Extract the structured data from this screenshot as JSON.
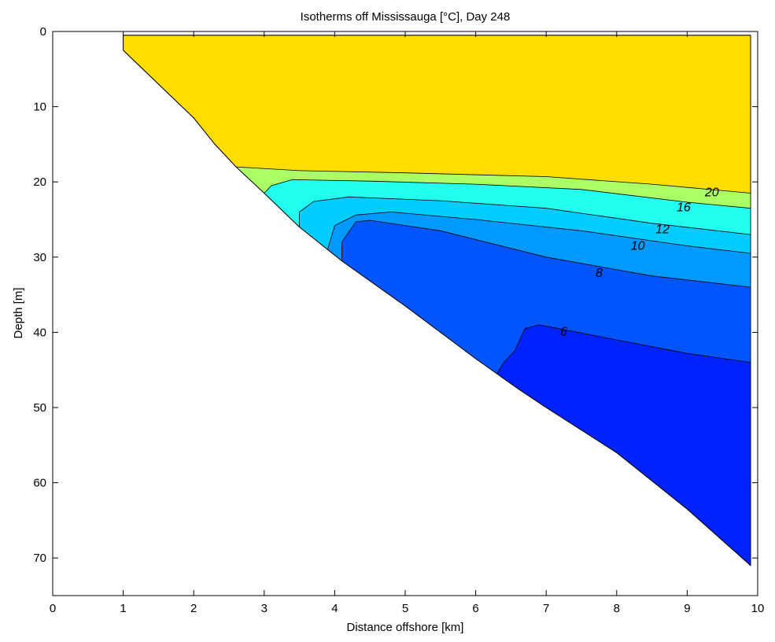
{
  "chart_data": {
    "type": "contour",
    "title": "Isotherms off Mississauga [°C], Day 248",
    "xlabel": "Distance offshore [km]",
    "ylabel": "Depth [m]",
    "xlim": [
      0,
      10
    ],
    "ylim": [
      0,
      75
    ],
    "y_reversed": true,
    "x_ticks": [
      "0",
      "1",
      "2",
      "3",
      "4",
      "5",
      "6",
      "7",
      "8",
      "9",
      "10"
    ],
    "y_ticks": [
      "0",
      "10",
      "20",
      "30",
      "40",
      "50",
      "60",
      "70"
    ],
    "grid": false,
    "bottom_profile": [
      {
        "x": 1.0,
        "y": 2.5
      },
      {
        "x": 1.5,
        "y": 7.0
      },
      {
        "x": 2.0,
        "y": 11.5
      },
      {
        "x": 2.3,
        "y": 15.0
      },
      {
        "x": 2.6,
        "y": 18.0
      },
      {
        "x": 3.0,
        "y": 21.5
      },
      {
        "x": 3.5,
        "y": 26.0
      },
      {
        "x": 4.1,
        "y": 30.5
      },
      {
        "x": 5.0,
        "y": 36.5
      },
      {
        "x": 6.0,
        "y": 43.5
      },
      {
        "x": 6.6,
        "y": 47.5
      },
      {
        "x": 7.0,
        "y": 50.0
      },
      {
        "x": 8.0,
        "y": 56.0
      },
      {
        "x": 9.0,
        "y": 63.5
      },
      {
        "x": 9.9,
        "y": 71.0
      }
    ],
    "isotherms": [
      {
        "level": 20,
        "label": "20",
        "label_at": {
          "x": 9.35,
          "y": 21.3
        },
        "points": [
          {
            "x": 2.6,
            "y": 18.0
          },
          {
            "x": 3.5,
            "y": 18.5
          },
          {
            "x": 5.0,
            "y": 18.8
          },
          {
            "x": 7.0,
            "y": 19.3
          },
          {
            "x": 8.5,
            "y": 20.3
          },
          {
            "x": 9.9,
            "y": 21.5
          }
        ]
      },
      {
        "level": 16,
        "label": "16",
        "label_at": {
          "x": 8.95,
          "y": 23.3
        },
        "points": [
          {
            "x": 3.0,
            "y": 21.5
          },
          {
            "x": 3.1,
            "y": 20.5
          },
          {
            "x": 3.4,
            "y": 19.7
          },
          {
            "x": 4.5,
            "y": 19.9
          },
          {
            "x": 6.0,
            "y": 20.3
          },
          {
            "x": 7.5,
            "y": 21.0
          },
          {
            "x": 9.0,
            "y": 22.7
          },
          {
            "x": 9.9,
            "y": 23.5
          }
        ]
      },
      {
        "level": 12,
        "label": "12",
        "label_at": {
          "x": 8.65,
          "y": 26.2
        },
        "points": [
          {
            "x": 3.5,
            "y": 26.0
          },
          {
            "x": 3.5,
            "y": 24.0
          },
          {
            "x": 3.7,
            "y": 22.6
          },
          {
            "x": 4.2,
            "y": 22.0
          },
          {
            "x": 5.5,
            "y": 22.5
          },
          {
            "x": 7.0,
            "y": 23.5
          },
          {
            "x": 8.5,
            "y": 25.5
          },
          {
            "x": 9.9,
            "y": 27.0
          }
        ]
      },
      {
        "level": 10,
        "label": "10",
        "label_at": {
          "x": 8.3,
          "y": 28.4
        },
        "points": [
          {
            "x": 4.1,
            "y": 30.5
          },
          {
            "x": 3.9,
            "y": 29.0
          },
          {
            "x": 4.0,
            "y": 25.8
          },
          {
            "x": 4.3,
            "y": 24.4
          },
          {
            "x": 4.8,
            "y": 24.0
          },
          {
            "x": 6.0,
            "y": 25.0
          },
          {
            "x": 7.5,
            "y": 26.5
          },
          {
            "x": 9.0,
            "y": 28.5
          },
          {
            "x": 9.9,
            "y": 29.5
          }
        ]
      },
      {
        "level": 8,
        "label": "8",
        "label_at": {
          "x": 7.75,
          "y": 32.0
        },
        "points": [
          {
            "x": 4.1,
            "y": 30.5
          },
          {
            "x": 4.1,
            "y": 28.0
          },
          {
            "x": 4.3,
            "y": 25.3
          },
          {
            "x": 4.5,
            "y": 25.1
          },
          {
            "x": 5.5,
            "y": 26.5
          },
          {
            "x": 7.0,
            "y": 30.0
          },
          {
            "x": 8.5,
            "y": 32.5
          },
          {
            "x": 9.9,
            "y": 34.0
          }
        ]
      },
      {
        "level": 6,
        "label": "6",
        "label_at": {
          "x": 7.25,
          "y": 39.8
        },
        "points": [
          {
            "x": 6.3,
            "y": 45.5
          },
          {
            "x": 6.4,
            "y": 44.0
          },
          {
            "x": 6.55,
            "y": 42.5
          },
          {
            "x": 6.7,
            "y": 39.5
          },
          {
            "x": 6.9,
            "y": 39.0
          },
          {
            "x": 8.0,
            "y": 41.0
          },
          {
            "x": 9.0,
            "y": 42.8
          },
          {
            "x": 9.9,
            "y": 44.0
          }
        ]
      }
    ],
    "colors": {
      "warm_layer": "#ffdd00",
      "band_16_20": "#aaff66",
      "band_12_16": "#22ffee",
      "band_10_12": "#00ccff",
      "band_8_10": "#0099ff",
      "band_6_8": "#0055ff",
      "band_below_6": "#0022ff",
      "land": "#ffffff"
    }
  }
}
